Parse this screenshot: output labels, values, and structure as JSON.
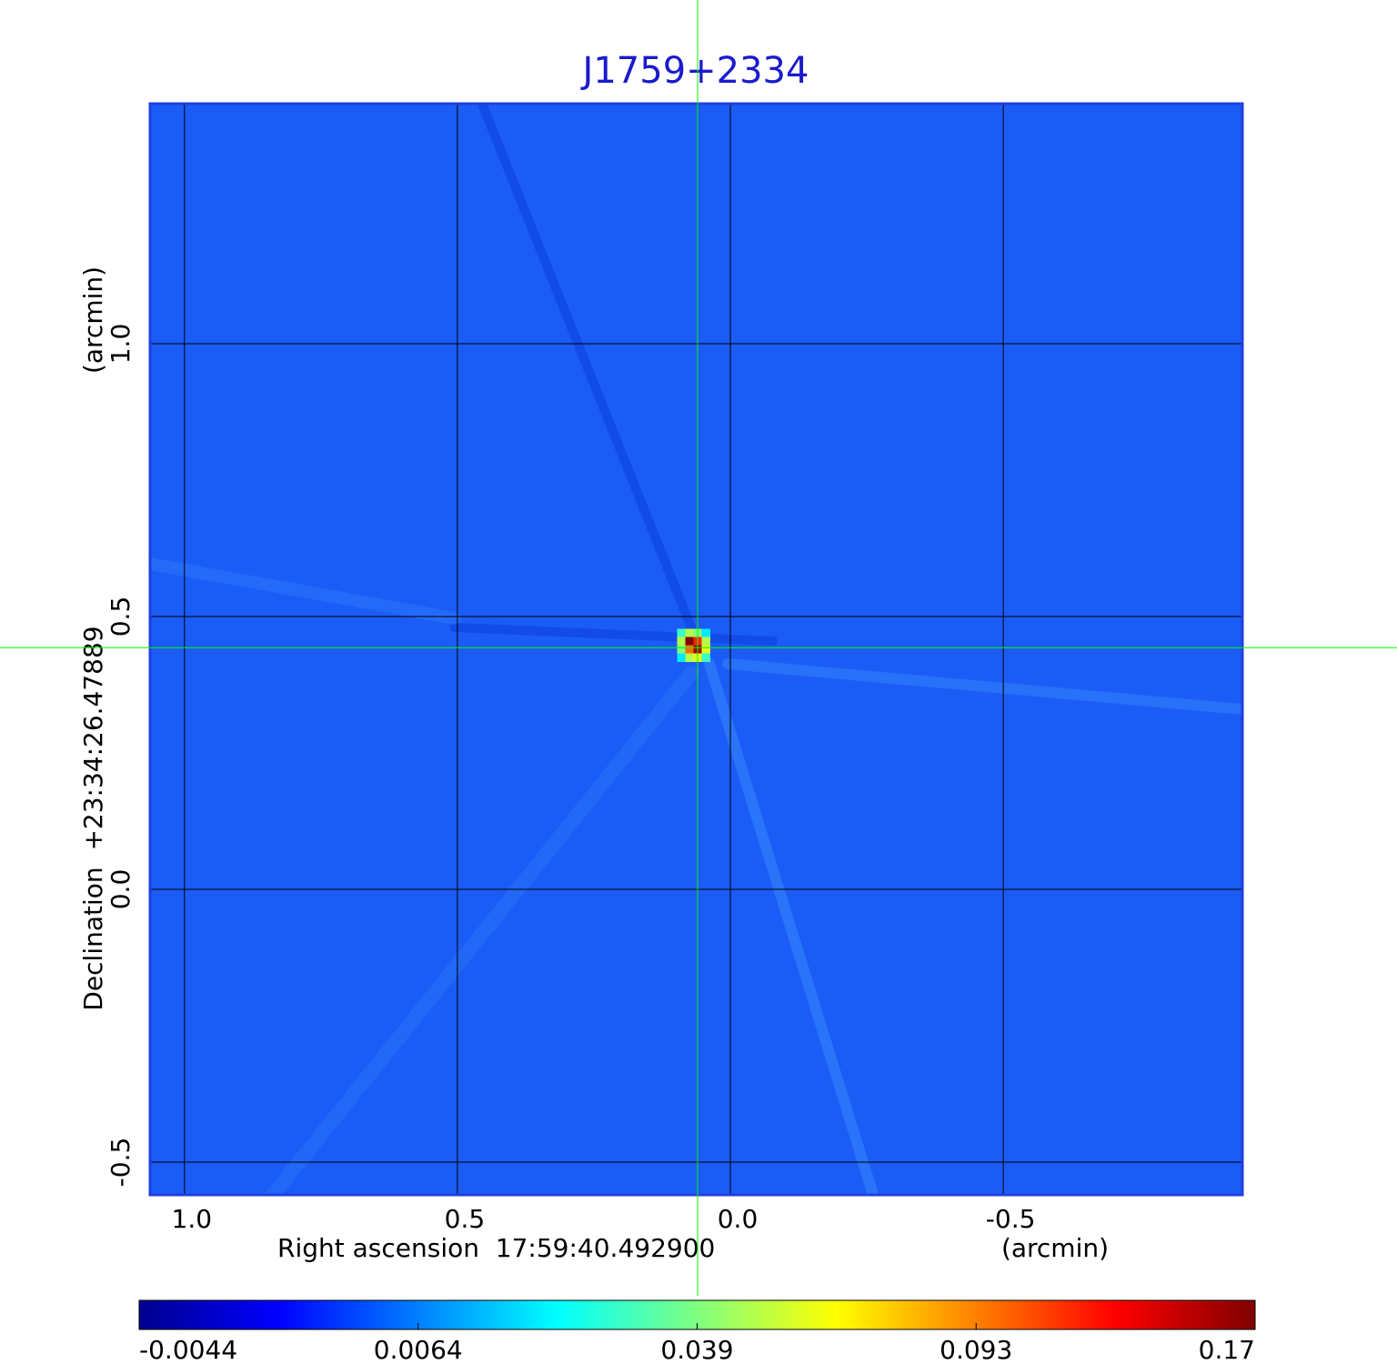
{
  "chart_data": {
    "type": "heatmap",
    "title": "J1759+2334",
    "x_label": "Right ascension  17:59:40.492900",
    "x_unit": "(arcmin)",
    "y_label": "Declination  +23:34:26.47889",
    "y_unit": "(arcmin)",
    "xlim": [
      1.063,
      -0.938
    ],
    "ylim": [
      -0.56,
      1.44
    ],
    "xticks": [
      {
        "value": 1,
        "label": "1.0"
      },
      0.5,
      {
        "value": 0,
        "label": "0.0"
      },
      -0.5
    ],
    "yticks": [
      {
        "value": 1,
        "label": "1.0"
      },
      0.5,
      {
        "value": 0,
        "label": "0.0"
      },
      -0.5
    ],
    "grid": true,
    "colormap": "jet",
    "colorbar": {
      "lim": [
        -0.0044,
        0.17
      ],
      "ticks": [
        -0.0044,
        0.0064,
        0.039,
        0.093,
        0.17
      ]
    },
    "crosshair": {
      "x": 0.06,
      "y": 0.443,
      "color": "#00ff00"
    },
    "x": [
      0.09,
      0.075,
      0.06,
      0.045,
      0.09,
      0.075,
      0.06,
      0.045,
      0.09,
      0.075,
      0.06,
      0.045,
      0.09,
      0.075,
      0.06,
      0.045
    ],
    "y": [
      0.47,
      0.47,
      0.47,
      0.47,
      0.455,
      0.455,
      0.455,
      0.455,
      0.44,
      0.44,
      0.44,
      0.44,
      0.425,
      0.425,
      0.425,
      0.425
    ],
    "values": [
      0.03,
      0.05,
      0.04,
      0.02,
      0.05,
      0.17,
      0.12,
      0.05,
      0.04,
      0.1,
      0.16,
      0.06,
      0.02,
      0.05,
      0.06,
      0.03
    ]
  }
}
